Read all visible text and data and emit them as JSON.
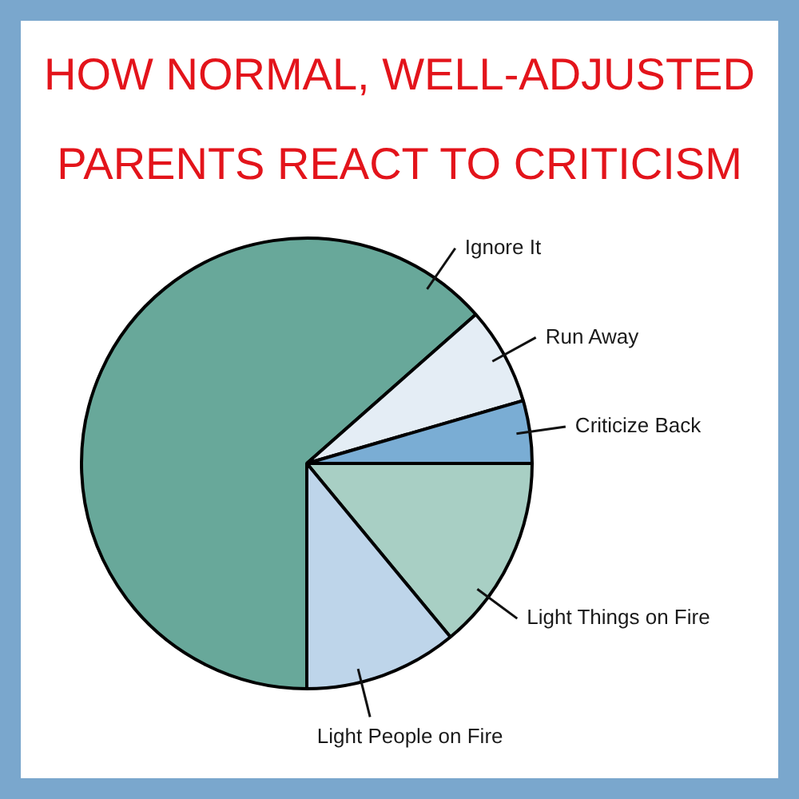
{
  "chart_data": {
    "type": "pie",
    "title": "HOW NORMAL, WELL-ADJUSTED PARENTS REACT TO CRITICISM",
    "categories": [
      "Ignore It",
      "Run Away",
      "Criticize Back",
      "Light Things on Fire",
      "Light People on Fire"
    ],
    "values": [
      63.5,
      7,
      4.5,
      14,
      11
    ],
    "colors": [
      "#68a89a",
      "#e4edf5",
      "#7aadd4",
      "#a8cfc4",
      "#bed5ea"
    ],
    "legend": false
  }
}
